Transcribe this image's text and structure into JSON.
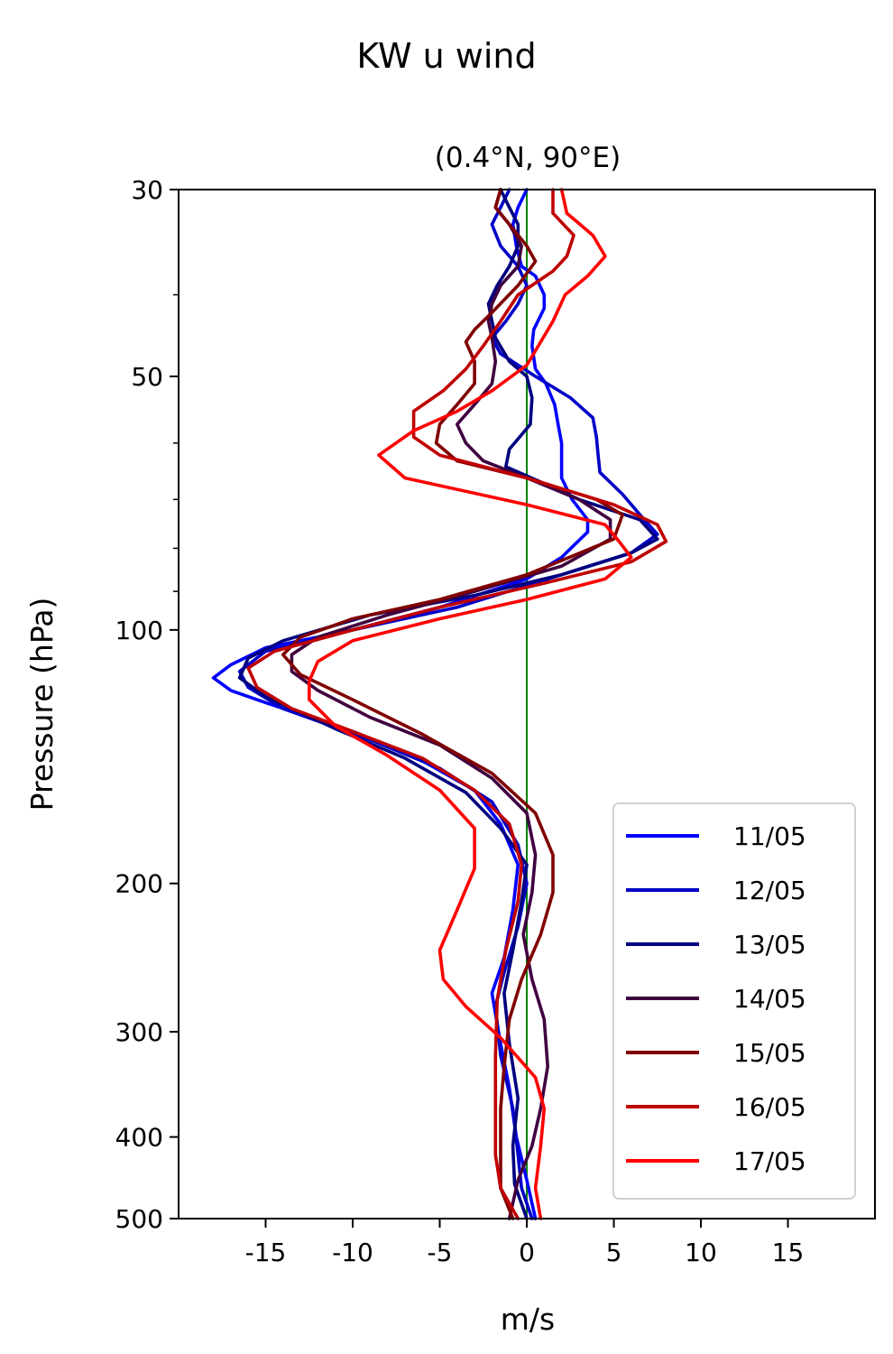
{
  "chart_data": {
    "type": "line",
    "suptitle": "KW u wind",
    "title": "(0.4°N, 90°E)",
    "xlabel": "m/s",
    "ylabel": "Pressure (hPa)",
    "xlim": [
      -20,
      20
    ],
    "ylim": [
      500,
      30
    ],
    "yscale": "log",
    "x_ticks": [
      -15,
      -10,
      -5,
      0,
      5,
      10,
      15
    ],
    "x_tick_labels": [
      "-15",
      "-10",
      "-5",
      "0",
      "5",
      "10",
      "15"
    ],
    "y_ticks": [
      30,
      50,
      100,
      200,
      300,
      400,
      500
    ],
    "y_tick_labels": [
      "30",
      "50",
      "100",
      "200",
      "300",
      "400",
      "500"
    ],
    "y_minor_ticks": [
      40,
      60,
      70,
      80,
      90
    ],
    "zero_line_color": "#008000",
    "legend_position": "lower-right",
    "series": [
      {
        "name": "11/05",
        "color": "#0000ff",
        "points": [
          [
            0,
            30
          ],
          [
            -0.5,
            31.5
          ],
          [
            -0.8,
            33
          ],
          [
            -0.6,
            35
          ],
          [
            -0.3,
            37
          ],
          [
            0.5,
            38
          ],
          [
            1.0,
            40
          ],
          [
            1.0,
            41.5
          ],
          [
            0.4,
            44
          ],
          [
            0.3,
            46
          ],
          [
            0.5,
            49
          ],
          [
            1.1,
            51
          ],
          [
            1.6,
            54
          ],
          [
            1.8,
            57
          ],
          [
            2.0,
            60
          ],
          [
            2.0,
            63
          ],
          [
            2.0,
            66
          ],
          [
            2.6,
            70
          ],
          [
            3.5,
            74
          ],
          [
            3.5,
            76.5
          ],
          [
            2.0,
            82
          ],
          [
            0,
            87
          ],
          [
            -5,
            94
          ],
          [
            -10,
            100
          ],
          [
            -15,
            105
          ],
          [
            -17,
            110
          ],
          [
            -18,
            114
          ],
          [
            -17,
            118
          ],
          [
            -15,
            122
          ],
          [
            -10,
            132
          ],
          [
            -6,
            143
          ],
          [
            -3,
            155
          ],
          [
            -1.5,
            170
          ],
          [
            -0.5,
            190
          ],
          [
            -0.8,
            215
          ],
          [
            -1.3,
            245
          ],
          [
            -2.0,
            270
          ],
          [
            -1.5,
            310
          ],
          [
            -1.0,
            350
          ],
          [
            -0.6,
            400
          ],
          [
            0,
            450
          ],
          [
            0.5,
            500
          ]
        ]
      },
      {
        "name": "12/05",
        "color": "#0000c8",
        "points": [
          [
            -1,
            30
          ],
          [
            -1.5,
            31.5
          ],
          [
            -2.0,
            33
          ],
          [
            -1.5,
            35
          ],
          [
            -0.5,
            37
          ],
          [
            0,
            39
          ],
          [
            -0.5,
            41
          ],
          [
            -1.2,
            43
          ],
          [
            -2.0,
            45
          ],
          [
            -1.5,
            47
          ],
          [
            0.5,
            50
          ],
          [
            2.5,
            53
          ],
          [
            3.8,
            56
          ],
          [
            4.0,
            59
          ],
          [
            4.1,
            62
          ],
          [
            4.2,
            65
          ],
          [
            5.5,
            69
          ],
          [
            6.5,
            73
          ],
          [
            7.5,
            77
          ],
          [
            6.0,
            81
          ],
          [
            2.0,
            86
          ],
          [
            -4,
            94
          ],
          [
            -10,
            100
          ],
          [
            -15,
            106
          ],
          [
            -16.5,
            112
          ],
          [
            -16.0,
            117
          ],
          [
            -14,
            124
          ],
          [
            -9,
            135
          ],
          [
            -5,
            146
          ],
          [
            -2,
            160
          ],
          [
            -0.5,
            180
          ],
          [
            0,
            200
          ],
          [
            -0.5,
            225
          ],
          [
            -1.3,
            255
          ],
          [
            -1.8,
            280
          ],
          [
            -1.5,
            320
          ],
          [
            -0.8,
            370
          ],
          [
            -0.5,
            420
          ],
          [
            -0.3,
            460
          ],
          [
            0.3,
            500
          ]
        ]
      },
      {
        "name": "13/05",
        "color": "#000080",
        "points": [
          [
            -1.5,
            30
          ],
          [
            -1.0,
            31.5
          ],
          [
            -0.5,
            33
          ],
          [
            -0.5,
            35
          ],
          [
            -1.0,
            37
          ],
          [
            -1.7,
            39
          ],
          [
            -2.2,
            41
          ],
          [
            -2.0,
            43
          ],
          [
            -1.8,
            45
          ],
          [
            -1.0,
            48
          ],
          [
            0,
            50
          ],
          [
            0.3,
            53
          ],
          [
            0.2,
            57
          ],
          [
            -1.0,
            61
          ],
          [
            -1.2,
            64
          ],
          [
            1.0,
            67
          ],
          [
            3,
            70
          ],
          [
            6.5,
            74
          ],
          [
            7.5,
            78
          ],
          [
            6.0,
            81
          ],
          [
            2.0,
            86
          ],
          [
            -3,
            91
          ],
          [
            -9,
            96
          ],
          [
            -14,
            103
          ],
          [
            -16,
            108
          ],
          [
            -16.5,
            114
          ],
          [
            -15,
            120
          ],
          [
            -11,
            131
          ],
          [
            -7,
            142
          ],
          [
            -3.5,
            156
          ],
          [
            -1.5,
            172
          ],
          [
            0,
            190
          ],
          [
            -0.3,
            210
          ],
          [
            -0.8,
            240
          ],
          [
            -1.3,
            270
          ],
          [
            -1.0,
            310
          ],
          [
            -0.5,
            360
          ],
          [
            -0.8,
            410
          ],
          [
            -0.7,
            455
          ],
          [
            0,
            500
          ]
        ]
      },
      {
        "name": "14/05",
        "color": "#400040",
        "points": [
          [
            -1.5,
            30
          ],
          [
            -1.8,
            31.5
          ],
          [
            -1.0,
            33
          ],
          [
            -0.3,
            35
          ],
          [
            -0.5,
            37
          ],
          [
            -1.5,
            39
          ],
          [
            -2.0,
            41
          ],
          [
            -2.2,
            43
          ],
          [
            -2.0,
            45
          ],
          [
            -1.8,
            48
          ],
          [
            -2.0,
            51
          ],
          [
            -3,
            54
          ],
          [
            -4,
            57
          ],
          [
            -3.5,
            60
          ],
          [
            -2.5,
            63
          ],
          [
            0,
            66
          ],
          [
            3,
            70
          ],
          [
            4.8,
            74
          ],
          [
            4.8,
            78
          ],
          [
            2,
            84
          ],
          [
            -3,
            90
          ],
          [
            -8,
            96
          ],
          [
            -12,
            102
          ],
          [
            -13.5,
            107
          ],
          [
            -13.5,
            112
          ],
          [
            -12,
            118
          ],
          [
            -9,
            127
          ],
          [
            -5,
            137
          ],
          [
            -2,
            150
          ],
          [
            0,
            165
          ],
          [
            0.5,
            185
          ],
          [
            0.3,
            205
          ],
          [
            -0.2,
            230
          ],
          [
            0.3,
            260
          ],
          [
            1.0,
            290
          ],
          [
            1.2,
            330
          ],
          [
            0.8,
            370
          ],
          [
            0.3,
            410
          ],
          [
            -0.5,
            450
          ],
          [
            -1.0,
            500
          ]
        ]
      },
      {
        "name": "15/05",
        "color": "#800000",
        "points": [
          [
            -1.5,
            30
          ],
          [
            -1.8,
            31.5
          ],
          [
            -1.0,
            33
          ],
          [
            0,
            35
          ],
          [
            0.5,
            36.5
          ],
          [
            -0.5,
            39
          ],
          [
            -2,
            42
          ],
          [
            -3,
            44
          ],
          [
            -3.5,
            45.5
          ],
          [
            -3,
            48
          ],
          [
            -3,
            51
          ],
          [
            -4,
            54
          ],
          [
            -5,
            57
          ],
          [
            -5.2,
            60
          ],
          [
            -4,
            63
          ],
          [
            0,
            66
          ],
          [
            4,
            70
          ],
          [
            5.5,
            73
          ],
          [
            5.0,
            78
          ],
          [
            0,
            86
          ],
          [
            -5,
            92
          ],
          [
            -10,
            97
          ],
          [
            -13,
            102
          ],
          [
            -14,
            107
          ],
          [
            -13,
            113
          ],
          [
            -10,
            121
          ],
          [
            -6,
            133
          ],
          [
            -2,
            148
          ],
          [
            0.5,
            165
          ],
          [
            1.5,
            185
          ],
          [
            1.5,
            205
          ],
          [
            0.8,
            230
          ],
          [
            -0.3,
            260
          ],
          [
            -1.0,
            290
          ],
          [
            -1.3,
            330
          ],
          [
            -1.5,
            370
          ],
          [
            -1.5,
            420
          ],
          [
            -1.5,
            460
          ],
          [
            -0.8,
            500
          ]
        ]
      },
      {
        "name": "16/05",
        "color": "#c00000",
        "points": [
          [
            1.5,
            30
          ],
          [
            1.5,
            32
          ],
          [
            2.7,
            34
          ],
          [
            2.3,
            36
          ],
          [
            1.5,
            37.5
          ],
          [
            -0.5,
            40
          ],
          [
            -1.5,
            43
          ],
          [
            -2.5,
            46
          ],
          [
            -3.5,
            49
          ],
          [
            -4.8,
            52
          ],
          [
            -6.5,
            55
          ],
          [
            -6.5,
            59
          ],
          [
            -5,
            62
          ],
          [
            0,
            66
          ],
          [
            5,
            71
          ],
          [
            7.5,
            75
          ],
          [
            8,
            78.5
          ],
          [
            6,
            83
          ],
          [
            1,
            88
          ],
          [
            -5,
            94
          ],
          [
            -10,
            100
          ],
          [
            -14.5,
            106
          ],
          [
            -16,
            111
          ],
          [
            -15.5,
            117
          ],
          [
            -13.5,
            124
          ],
          [
            -10,
            132
          ],
          [
            -6,
            142
          ],
          [
            -3,
            155
          ],
          [
            -1,
            170
          ],
          [
            -0.3,
            190
          ],
          [
            -0.5,
            210
          ],
          [
            -1.2,
            240
          ],
          [
            -1.7,
            275
          ],
          [
            -1.8,
            320
          ],
          [
            -1.8,
            370
          ],
          [
            -1.8,
            420
          ],
          [
            -1.5,
            460
          ],
          [
            -0.5,
            500
          ]
        ]
      },
      {
        "name": "17/05",
        "color": "#ff0000",
        "points": [
          [
            2.0,
            30
          ],
          [
            2.3,
            32
          ],
          [
            3.8,
            34
          ],
          [
            4.5,
            36
          ],
          [
            3.5,
            38
          ],
          [
            2.2,
            40
          ],
          [
            1.5,
            43
          ],
          [
            0.8,
            45.5
          ],
          [
            0,
            48.5
          ],
          [
            -2,
            52
          ],
          [
            -4,
            55
          ],
          [
            -6.5,
            58
          ],
          [
            -8.5,
            62
          ],
          [
            -7,
            66
          ],
          [
            0,
            71
          ],
          [
            4.5,
            75
          ],
          [
            5.3,
            78.5
          ],
          [
            6,
            82
          ],
          [
            4.5,
            87
          ],
          [
            0,
            92
          ],
          [
            -5,
            97
          ],
          [
            -10,
            103
          ],
          [
            -12,
            109
          ],
          [
            -12.5,
            115
          ],
          [
            -12.5,
            121
          ],
          [
            -11,
            130
          ],
          [
            -8,
            141
          ],
          [
            -5,
            155
          ],
          [
            -3,
            172
          ],
          [
            -3,
            192
          ],
          [
            -4,
            215
          ],
          [
            -5,
            240
          ],
          [
            -4.8,
            260
          ],
          [
            -3.5,
            280
          ],
          [
            -1.5,
            305
          ],
          [
            0.5,
            340
          ],
          [
            1.0,
            370
          ],
          [
            0.8,
            410
          ],
          [
            0.5,
            460
          ],
          [
            0.8,
            500
          ]
        ]
      }
    ]
  }
}
